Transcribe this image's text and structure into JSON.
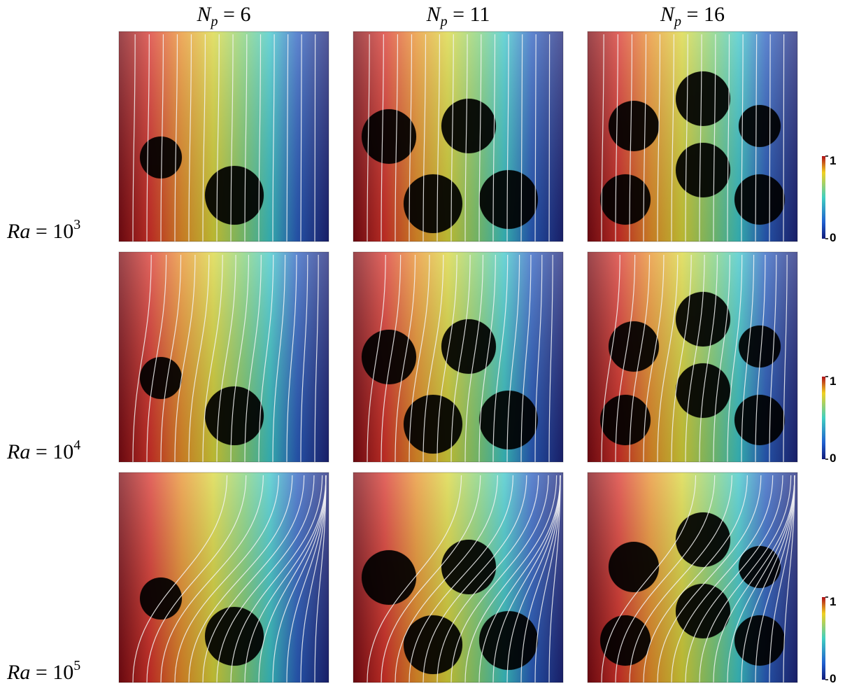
{
  "columns": [
    {
      "base": "N",
      "sub": "p",
      "rest": " = 6"
    },
    {
      "base": "N",
      "sub": "p",
      "rest": " = 11"
    },
    {
      "base": "N",
      "sub": "p",
      "rest": " = 16"
    }
  ],
  "rows": [
    {
      "label": {
        "base": "Ra",
        "rest": " = 10",
        "sup": "3"
      },
      "colorbar": {
        "top": "1",
        "bottom": "0"
      }
    },
    {
      "label": {
        "base": "Ra",
        "rest": " = 10",
        "sup": "4"
      },
      "colorbar": {
        "top": "1",
        "bottom": "0"
      }
    },
    {
      "label": {
        "base": "Ra",
        "rest": " = 10",
        "sup": "5"
      },
      "colorbar": {
        "top": "1",
        "bottom": "0"
      }
    }
  ]
}
